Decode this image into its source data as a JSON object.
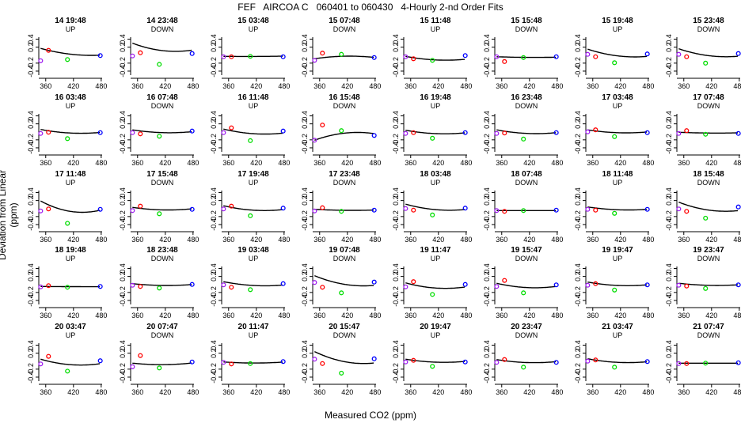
{
  "title": "FEF   AIRCOA C   060401 to 060430   4-Hourly 2-nd Order Fits",
  "xlabel": "Measured CO2 (ppm)",
  "ylabel": "Deviation from Linear (ppm)",
  "chart_data": {
    "type": "scatter",
    "xlim": [
      345,
      482
    ],
    "ylim": [
      -0.5,
      0.45
    ],
    "xticks": [
      "360",
      "420",
      "480"
    ],
    "yticks": [
      "-0.4",
      "-0.2",
      "0.2",
      "0.4"
    ],
    "marker_colors": {
      "purple": "#a020f0",
      "red": "#ff0000",
      "green": "#00dd00",
      "blue": "#0000ff"
    },
    "panels": [
      {
        "title": "14 19:48",
        "dir": "UP",
        "points": [
          [
            349,
            -0.14
          ],
          [
            366,
            0.12
          ],
          [
            407,
            -0.11
          ],
          [
            478,
            -0.01
          ]
        ],
        "fit": [
          0.17,
          -0.0032,
          1.46e-05
        ]
      },
      {
        "title": "14 23:48",
        "dir": "DOWN",
        "points": [
          [
            349,
            -0.02
          ],
          [
            366,
            0.06
          ],
          [
            407,
            -0.23
          ],
          [
            478,
            0.04
          ]
        ],
        "fit": [
          0.3,
          -0.0044,
          2.36e-05
        ]
      },
      {
        "title": "15 03:48",
        "dir": "UP",
        "points": [
          [
            349,
            -0.04
          ],
          [
            366,
            -0.04
          ],
          [
            407,
            -0.03
          ],
          [
            478,
            -0.04
          ]
        ],
        "fit": [
          -0.03,
          -0.0001,
          1e-06
        ]
      },
      {
        "title": "15 07:48",
        "dir": "DOWN",
        "points": [
          [
            349,
            -0.13
          ],
          [
            366,
            0.05
          ],
          [
            407,
            0.02
          ],
          [
            478,
            -0.06
          ]
        ],
        "fit": [
          -0.09,
          0.0017,
          -1.12e-05
        ]
      },
      {
        "title": "15 11:48",
        "dir": "UP",
        "points": [
          [
            349,
            -0.04
          ],
          [
            366,
            -0.09
          ],
          [
            407,
            -0.13
          ],
          [
            478,
            -0.01
          ]
        ],
        "fit": [
          -0.03,
          -0.0022,
          1.26e-05
        ]
      },
      {
        "title": "15 15:48",
        "dir": "DOWN",
        "points": [
          [
            349,
            -0.04
          ],
          [
            366,
            -0.16
          ],
          [
            407,
            -0.06
          ],
          [
            478,
            -0.04
          ]
        ],
        "fit": [
          -0.04,
          -0.0004,
          2.4e-06
        ]
      },
      {
        "title": "15 19:48",
        "dir": "UP",
        "points": [
          [
            349,
            0.02
          ],
          [
            366,
            -0.04
          ],
          [
            407,
            -0.19
          ],
          [
            478,
            0.03
          ]
        ],
        "fit": [
          0.15,
          -0.0038,
          1.86e-05
        ]
      },
      {
        "title": "15 23:48",
        "dir": "DOWN",
        "points": [
          [
            349,
            0.02
          ],
          [
            366,
            -0.04
          ],
          [
            407,
            -0.2
          ],
          [
            478,
            0.04
          ]
        ],
        "fit": [
          0.16,
          -0.0039,
          1.9e-05
        ]
      },
      {
        "title": "16 03:48",
        "dir": "UP",
        "points": [
          [
            349,
            -0.04
          ],
          [
            366,
            -0.01
          ],
          [
            407,
            -0.17
          ],
          [
            478,
            -0.02
          ]
        ],
        "fit": [
          0.06,
          -0.0022,
          1.26e-05
        ]
      },
      {
        "title": "16 07:48",
        "dir": "DOWN",
        "points": [
          [
            349,
            -0.02
          ],
          [
            366,
            -0.05
          ],
          [
            407,
            -0.11
          ],
          [
            478,
            0.02
          ]
        ],
        "fit": [
          0.05,
          -0.0018,
          1.12e-05
        ]
      },
      {
        "title": "16 11:48",
        "dir": "UP",
        "points": [
          [
            349,
            -0.02
          ],
          [
            366,
            0.1
          ],
          [
            407,
            -0.22
          ],
          [
            478,
            0.02
          ]
        ],
        "fit": [
          0.07,
          -0.0028,
          1.56e-05
        ]
      },
      {
        "title": "16 15:48",
        "dir": "DOWN",
        "points": [
          [
            349,
            -0.21
          ],
          [
            366,
            0.17
          ],
          [
            407,
            0.03
          ],
          [
            478,
            -0.09
          ]
        ],
        "fit": [
          -0.21,
          0.0042,
          -2.26e-05
        ]
      },
      {
        "title": "16 19:48",
        "dir": "UP",
        "points": [
          [
            349,
            -0.04
          ],
          [
            366,
            -0.02
          ],
          [
            407,
            -0.16
          ],
          [
            478,
            -0.02
          ]
        ],
        "fit": [
          0.04,
          -0.0021,
          1.24e-05
        ]
      },
      {
        "title": "16 23:48",
        "dir": "DOWN",
        "points": [
          [
            349,
            -0.04
          ],
          [
            366,
            -0.03
          ],
          [
            407,
            -0.18
          ],
          [
            478,
            -0.02
          ]
        ],
        "fit": [
          0.05,
          -0.0022,
          1.28e-05
        ]
      },
      {
        "title": "17 03:48",
        "dir": "UP",
        "points": [
          [
            349,
            0.0
          ],
          [
            366,
            0.05
          ],
          [
            407,
            -0.12
          ],
          [
            478,
            -0.02
          ]
        ],
        "fit": [
          0.05,
          -0.0018,
          1.08e-05
        ]
      },
      {
        "title": "17 07:48",
        "dir": "DOWN",
        "points": [
          [
            349,
            -0.04
          ],
          [
            366,
            0.03
          ],
          [
            407,
            -0.06
          ],
          [
            478,
            -0.04
          ]
        ],
        "fit": [
          -0.01,
          -0.0005,
          3e-06
        ]
      },
      {
        "title": "17 11:48",
        "dir": "UP",
        "points": [
          [
            349,
            -0.06
          ],
          [
            366,
            -0.01
          ],
          [
            407,
            -0.37
          ],
          [
            478,
            -0.02
          ]
        ],
        "fit": [
          0.19,
          -0.0063,
          3.5e-05
        ]
      },
      {
        "title": "17 15:48",
        "dir": "DOWN",
        "points": [
          [
            349,
            -0.05
          ],
          [
            366,
            0.06
          ],
          [
            407,
            -0.13
          ],
          [
            478,
            -0.02
          ]
        ],
        "fit": [
          0.03,
          -0.0017,
          1.1e-05
        ]
      },
      {
        "title": "17 19:48",
        "dir": "UP",
        "points": [
          [
            349,
            -0.01
          ],
          [
            366,
            0.06
          ],
          [
            407,
            -0.18
          ],
          [
            478,
            0.01
          ]
        ],
        "fit": [
          0.07,
          -0.0027,
          1.52e-05
        ]
      },
      {
        "title": "17 23:48",
        "dir": "DOWN",
        "points": [
          [
            349,
            -0.06
          ],
          [
            366,
            0.02
          ],
          [
            407,
            -0.07
          ],
          [
            478,
            -0.04
          ]
        ],
        "fit": [
          -0.02,
          -0.0006,
          3.6e-06
        ]
      },
      {
        "title": "18 03:48",
        "dir": "UP",
        "points": [
          [
            349,
            0.0
          ],
          [
            366,
            -0.04
          ],
          [
            407,
            -0.16
          ],
          [
            478,
            0.01
          ]
        ],
        "fit": [
          0.11,
          -0.0032,
          1.68e-05
        ]
      },
      {
        "title": "18 07:48",
        "dir": "DOWN",
        "points": [
          [
            349,
            -0.05
          ],
          [
            366,
            -0.07
          ],
          [
            407,
            -0.05
          ],
          [
            478,
            -0.04
          ]
        ],
        "fit": [
          -0.05,
          0.0,
          0.0
        ]
      },
      {
        "title": "18 11:48",
        "dir": "UP",
        "points": [
          [
            349,
            -0.02
          ],
          [
            366,
            -0.04
          ],
          [
            407,
            -0.12
          ],
          [
            478,
            -0.02
          ]
        ],
        "fit": [
          0.04,
          -0.0017,
          9.6e-06
        ]
      },
      {
        "title": "18 15:48",
        "dir": "DOWN",
        "points": [
          [
            349,
            -0.01
          ],
          [
            366,
            -0.07
          ],
          [
            407,
            -0.24
          ],
          [
            478,
            0.04
          ]
        ],
        "fit": [
          0.16,
          -0.0045,
          2.22e-05
        ]
      },
      {
        "title": "18 19:48",
        "dir": "UP",
        "points": [
          [
            349,
            -0.06
          ],
          [
            366,
            -0.03
          ],
          [
            407,
            -0.07
          ],
          [
            478,
            -0.05
          ]
        ],
        "fit": [
          -0.05,
          -0.0001,
          4e-07
        ]
      },
      {
        "title": "18 23:48",
        "dir": "DOWN",
        "points": [
          [
            349,
            -0.02
          ],
          [
            366,
            -0.05
          ],
          [
            407,
            -0.09
          ],
          [
            478,
            0.0
          ]
        ],
        "fit": [
          0.02,
          -0.0012,
          8e-06
        ]
      },
      {
        "title": "19 03:48",
        "dir": "UP",
        "points": [
          [
            349,
            -0.01
          ],
          [
            366,
            -0.07
          ],
          [
            407,
            -0.13
          ],
          [
            478,
            0.02
          ]
        ],
        "fit": [
          0.07,
          -0.0023,
          1.28e-05
        ]
      },
      {
        "title": "19 07:48",
        "dir": "DOWN",
        "points": [
          [
            349,
            0.05
          ],
          [
            366,
            -0.07
          ],
          [
            407,
            -0.21
          ],
          [
            478,
            0.06
          ]
        ],
        "fit": [
          0.22,
          -0.0048,
          2.26e-05
        ]
      },
      {
        "title": "19 11:47",
        "dir": "UP",
        "points": [
          [
            349,
            -0.06
          ],
          [
            366,
            0.07
          ],
          [
            407,
            -0.25
          ],
          [
            478,
            0.0
          ]
        ],
        "fit": [
          0.04,
          -0.0032,
          1.86e-05
        ]
      },
      {
        "title": "19 15:47",
        "dir": "DOWN",
        "points": [
          [
            349,
            -0.05
          ],
          [
            366,
            0.1
          ],
          [
            407,
            -0.21
          ],
          [
            478,
            -0.01
          ]
        ],
        "fit": [
          0.03,
          -0.0027,
          1.62e-05
        ]
      },
      {
        "title": "19 19:47",
        "dir": "UP",
        "points": [
          [
            349,
            -0.02
          ],
          [
            366,
            0.02
          ],
          [
            407,
            -0.14
          ],
          [
            478,
            -0.01
          ]
        ],
        "fit": [
          0.06,
          -0.0021,
          1.22e-05
        ]
      },
      {
        "title": "19 23:47",
        "dir": "DOWN",
        "points": [
          [
            349,
            -0.02
          ],
          [
            366,
            -0.04
          ],
          [
            407,
            -0.1
          ],
          [
            478,
            -0.01
          ]
        ],
        "fit": [
          0.03,
          -0.0013,
          7.8e-06
        ]
      },
      {
        "title": "20 03:47",
        "dir": "UP",
        "points": [
          [
            349,
            -0.07
          ],
          [
            366,
            0.12
          ],
          [
            407,
            -0.25
          ],
          [
            478,
            0.01
          ]
        ],
        "fit": [
          0.05,
          -0.0034,
          1.96e-05
        ]
      },
      {
        "title": "20 07:47",
        "dir": "DOWN",
        "points": [
          [
            349,
            -0.14
          ],
          [
            366,
            0.14
          ],
          [
            407,
            -0.17
          ],
          [
            478,
            -0.02
          ]
        ],
        "fit": [
          -0.05,
          -0.0012,
          9.6e-06
        ]
      },
      {
        "title": "20 11:47",
        "dir": "UP",
        "points": [
          [
            349,
            -0.03
          ],
          [
            366,
            -0.07
          ],
          [
            407,
            -0.06
          ],
          [
            478,
            -0.01
          ]
        ],
        "fit": [
          -0.02,
          -0.0008,
          6e-06
        ]
      },
      {
        "title": "20 15:47",
        "dir": "DOWN",
        "points": [
          [
            349,
            0.05
          ],
          [
            366,
            -0.06
          ],
          [
            407,
            -0.3
          ],
          [
            478,
            0.06
          ]
        ],
        "fit": [
          0.24,
          -0.0056,
          2.62e-05
        ]
      },
      {
        "title": "20 19:47",
        "dir": "UP",
        "points": [
          [
            349,
            -0.02
          ],
          [
            366,
            0.02
          ],
          [
            407,
            -0.13
          ],
          [
            478,
            -0.02
          ]
        ],
        "fit": [
          0.05,
          -0.0019,
          1.14e-05
        ]
      },
      {
        "title": "20 23:47",
        "dir": "DOWN",
        "points": [
          [
            349,
            -0.03
          ],
          [
            366,
            0.04
          ],
          [
            407,
            -0.15
          ],
          [
            478,
            -0.03
          ]
        ],
        "fit": [
          0.04,
          -0.0019,
          1.16e-05
        ]
      },
      {
        "title": "21 03:47",
        "dir": "UP",
        "points": [
          [
            349,
            0.0
          ],
          [
            366,
            0.03
          ],
          [
            407,
            -0.15
          ],
          [
            478,
            -0.01
          ]
        ],
        "fit": [
          0.06,
          -0.0022,
          1.26e-05
        ]
      },
      {
        "title": "21 07:47",
        "dir": "DOWN",
        "points": [
          [
            349,
            -0.06
          ],
          [
            366,
            -0.06
          ],
          [
            407,
            -0.05
          ],
          [
            478,
            -0.04
          ]
        ],
        "fit": [
          -0.05,
          0.0,
          0.0
        ]
      }
    ]
  }
}
